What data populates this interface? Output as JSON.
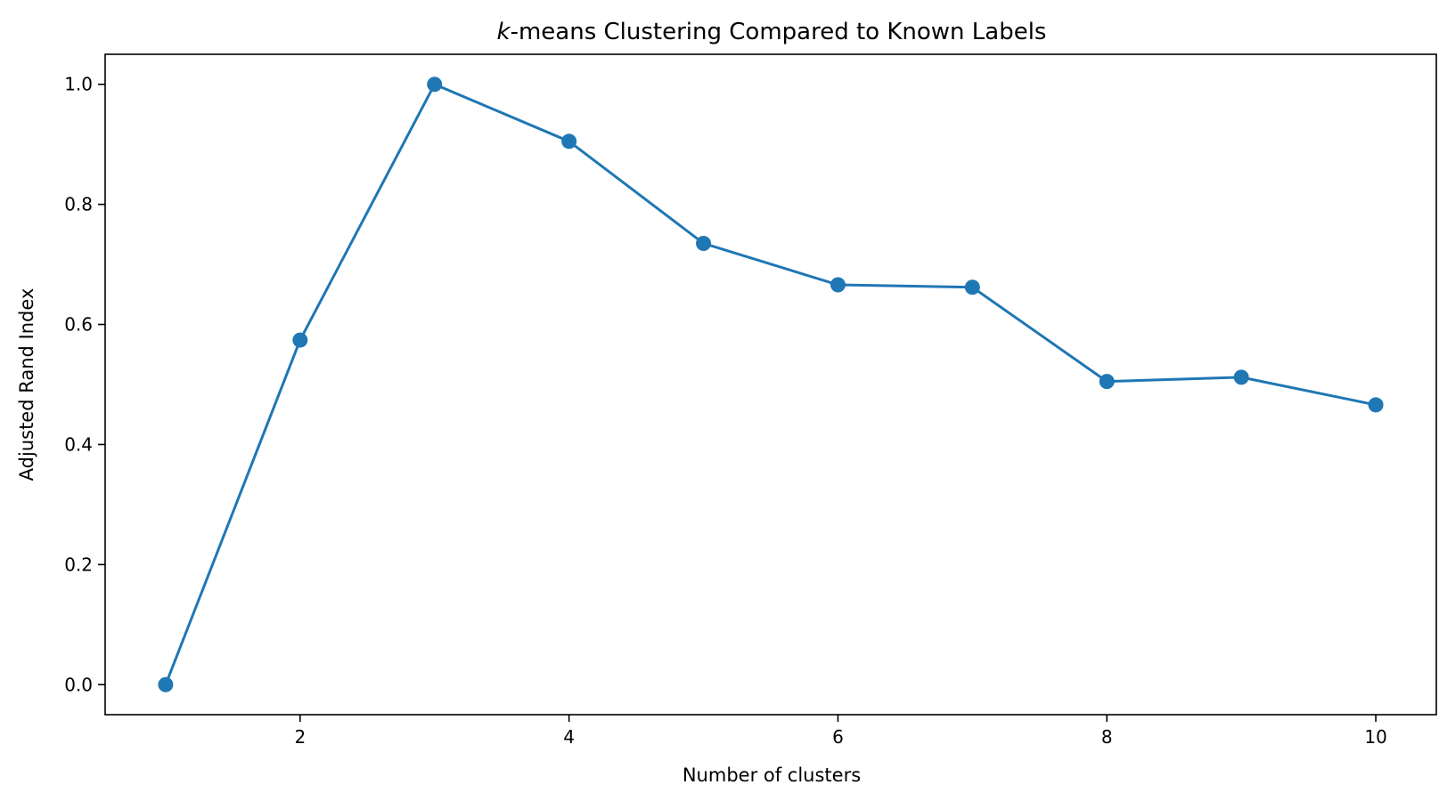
{
  "chart_data": {
    "type": "line",
    "title_italic": "k",
    "title_rest": "-means Clustering Compared to Known Labels",
    "xlabel": "Number of clusters",
    "ylabel": "Adjusted Rand Index",
    "xlim": [
      0.55,
      10.45
    ],
    "ylim": [
      -0.05,
      1.05
    ],
    "xticks": [
      2,
      4,
      6,
      8,
      10
    ],
    "xtick_labels": [
      "2",
      "4",
      "6",
      "8",
      "10"
    ],
    "yticks": [
      0.0,
      0.2,
      0.4,
      0.6,
      0.8,
      1.0
    ],
    "ytick_labels": [
      "0.0",
      "0.2",
      "0.4",
      "0.6",
      "0.8",
      "1.0"
    ],
    "grid": false,
    "series": [
      {
        "color": "#1f77b4",
        "marker": "circle",
        "x": [
          1,
          2,
          3,
          4,
          5,
          6,
          7,
          8,
          9,
          10
        ],
        "y": [
          0.0,
          0.574,
          1.0,
          0.905,
          0.735,
          0.666,
          0.662,
          0.505,
          0.512,
          0.466
        ]
      }
    ]
  }
}
